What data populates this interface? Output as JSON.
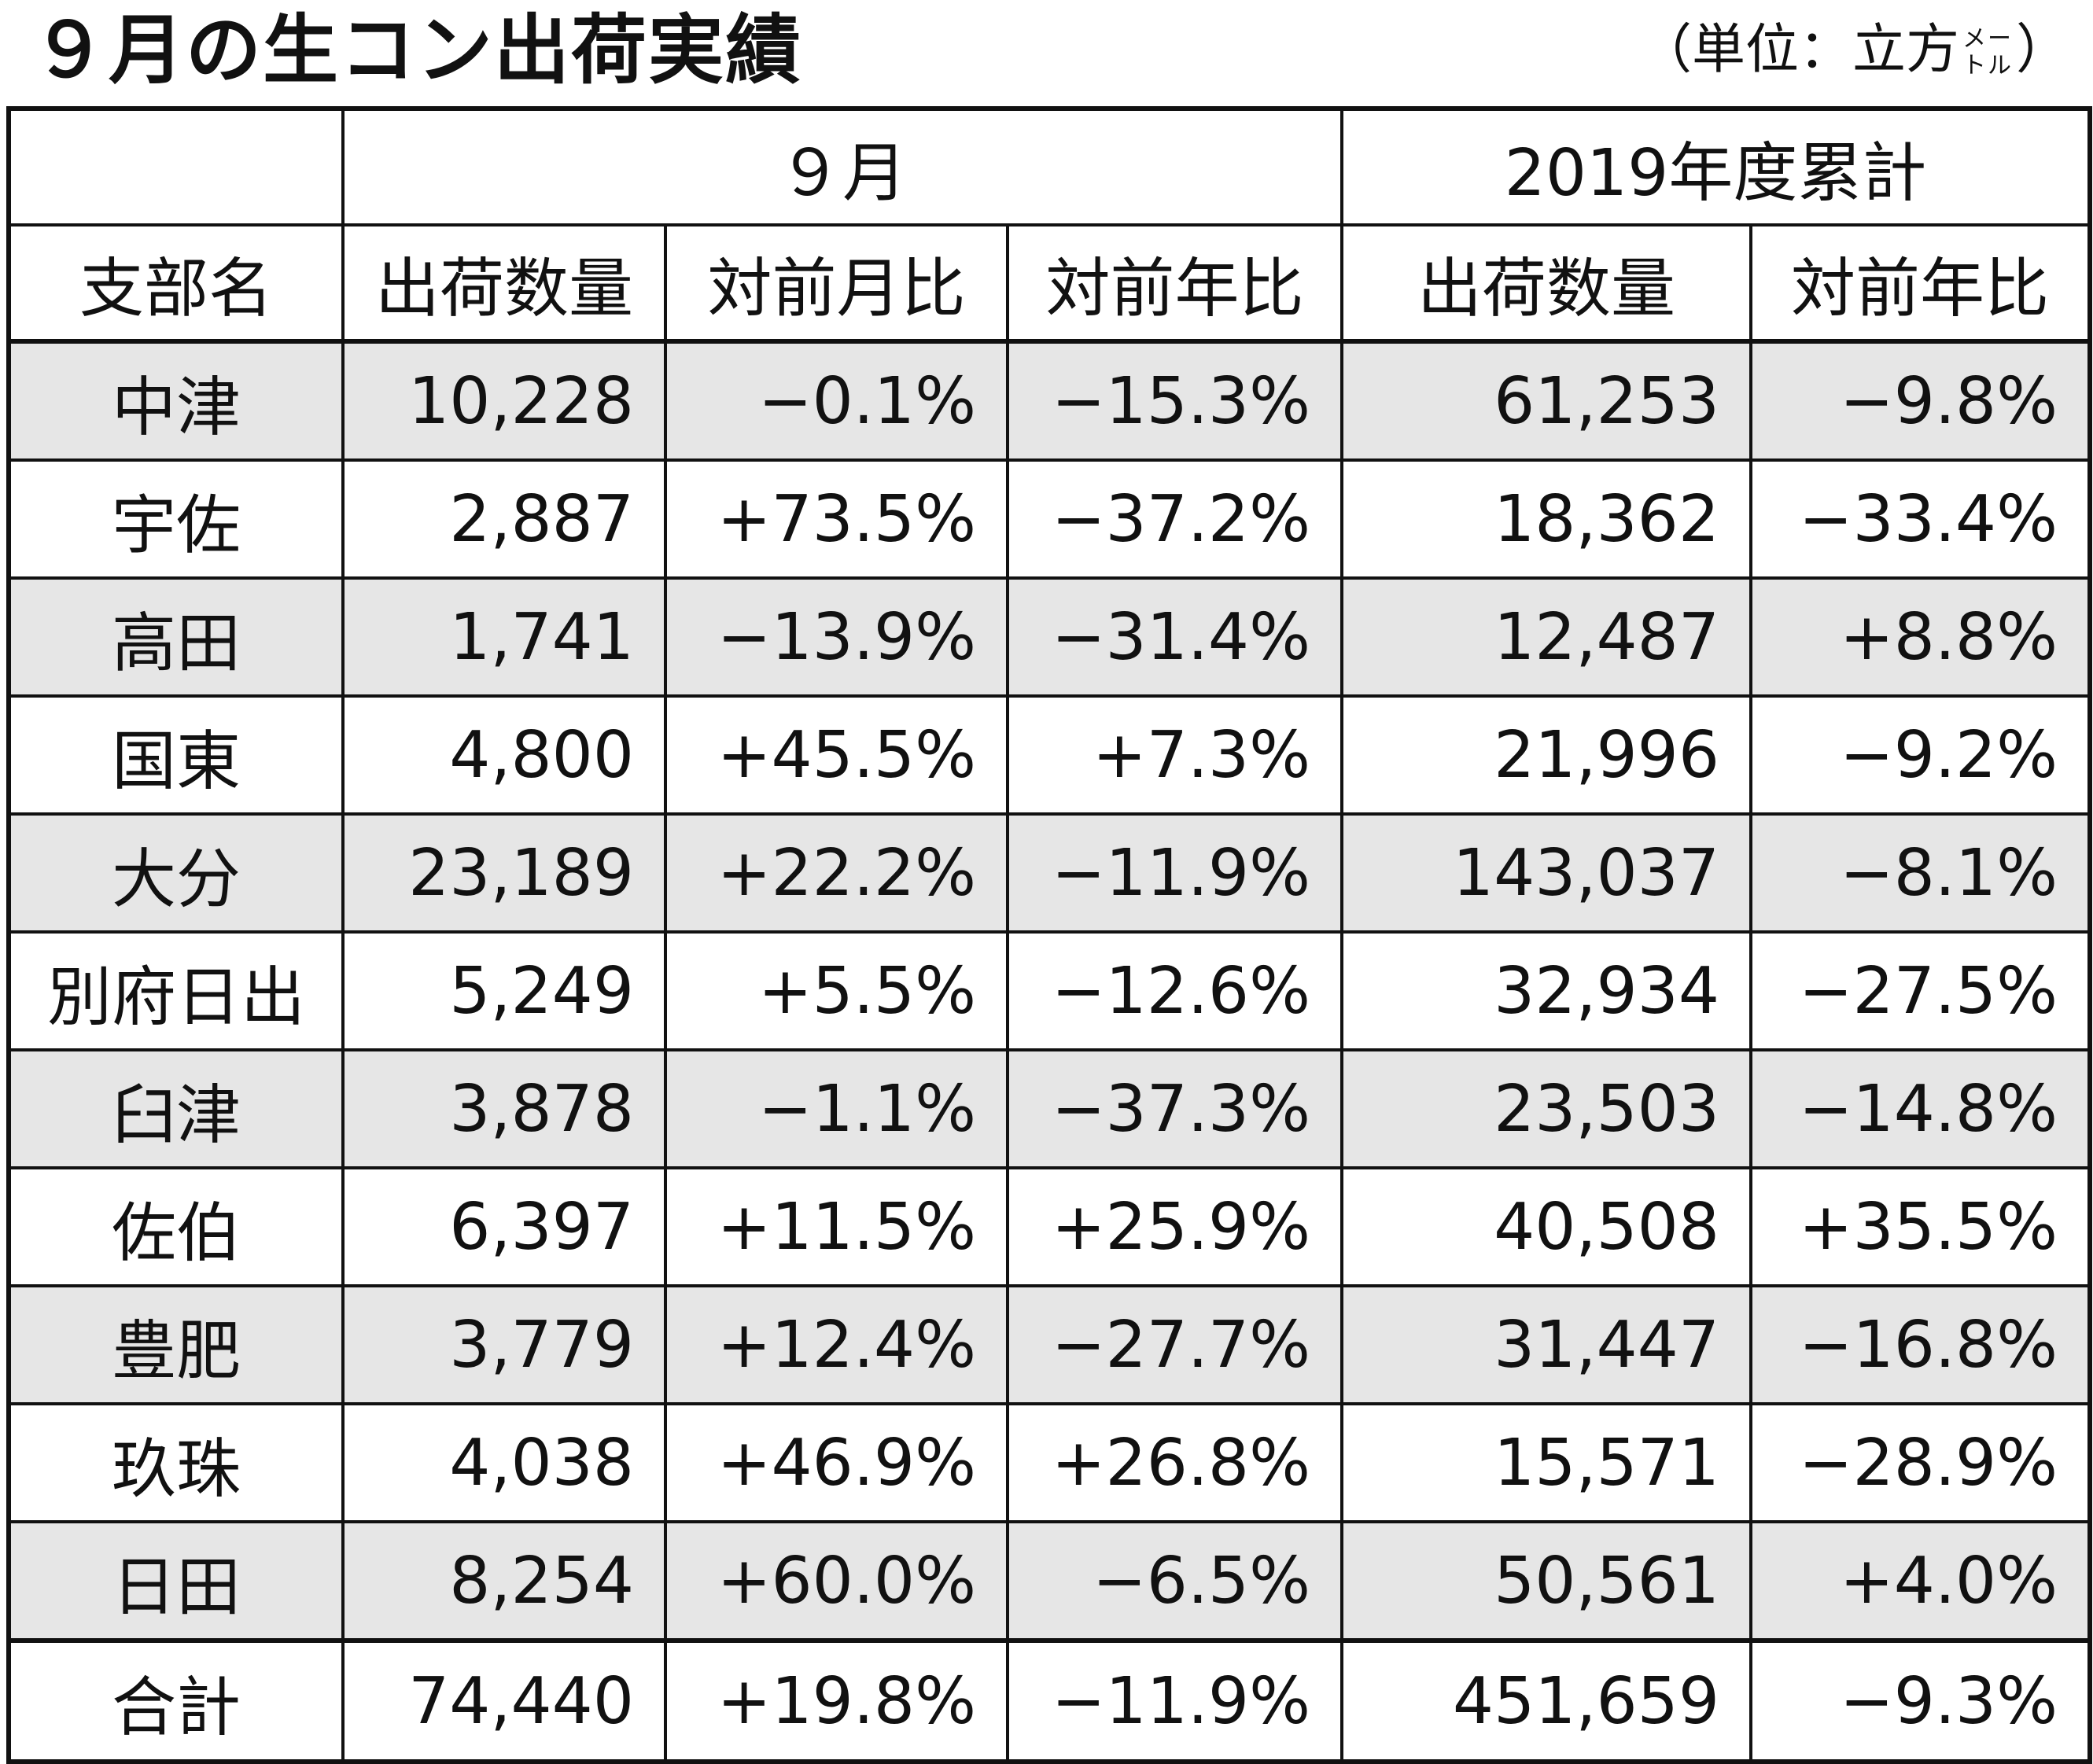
{
  "title": "９月の生コン出荷実績",
  "unit": {
    "prefix": "（単位：立方",
    "small_top": "メー",
    "small_bottom": "トル",
    "suffix": "）"
  },
  "header": {
    "group_month": "９月",
    "group_cumulative": "2019年度累計",
    "col_branch": "支部名",
    "col_month_qty": "出荷数量",
    "col_month_mom": "対前月比",
    "col_month_yoy": "対前年比",
    "col_cum_qty": "出荷数量",
    "col_cum_yoy": "対前年比"
  },
  "rows": [
    {
      "branch": "中津",
      "month_qty": "10,228",
      "month_mom": "−0.1%",
      "month_yoy": "−15.3%",
      "cum_qty": "61,253",
      "cum_yoy": "−9.8%"
    },
    {
      "branch": "宇佐",
      "month_qty": "2,887",
      "month_mom": "+73.5%",
      "month_yoy": "−37.2%",
      "cum_qty": "18,362",
      "cum_yoy": "−33.4%"
    },
    {
      "branch": "高田",
      "month_qty": "1,741",
      "month_mom": "−13.9%",
      "month_yoy": "−31.4%",
      "cum_qty": "12,487",
      "cum_yoy": "+8.8%"
    },
    {
      "branch": "国東",
      "month_qty": "4,800",
      "month_mom": "+45.5%",
      "month_yoy": "+7.3%",
      "cum_qty": "21,996",
      "cum_yoy": "−9.2%"
    },
    {
      "branch": "大分",
      "month_qty": "23,189",
      "month_mom": "+22.2%",
      "month_yoy": "−11.9%",
      "cum_qty": "143,037",
      "cum_yoy": "−8.1%"
    },
    {
      "branch": "別府日出",
      "month_qty": "5,249",
      "month_mom": "+5.5%",
      "month_yoy": "−12.6%",
      "cum_qty": "32,934",
      "cum_yoy": "−27.5%"
    },
    {
      "branch": "臼津",
      "month_qty": "3,878",
      "month_mom": "−1.1%",
      "month_yoy": "−37.3%",
      "cum_qty": "23,503",
      "cum_yoy": "−14.8%"
    },
    {
      "branch": "佐伯",
      "month_qty": "6,397",
      "month_mom": "+11.5%",
      "month_yoy": "+25.9%",
      "cum_qty": "40,508",
      "cum_yoy": "+35.5%"
    },
    {
      "branch": "豊肥",
      "month_qty": "3,779",
      "month_mom": "+12.4%",
      "month_yoy": "−27.7%",
      "cum_qty": "31,447",
      "cum_yoy": "−16.8%"
    },
    {
      "branch": "玖珠",
      "month_qty": "4,038",
      "month_mom": "+46.9%",
      "month_yoy": "+26.8%",
      "cum_qty": "15,571",
      "cum_yoy": "−28.9%"
    },
    {
      "branch": "日田",
      "month_qty": "8,254",
      "month_mom": "+60.0%",
      "month_yoy": "−6.5%",
      "cum_qty": "50,561",
      "cum_yoy": "+4.0%"
    }
  ],
  "total": {
    "branch": "合計",
    "month_qty": "74,440",
    "month_mom": "+19.8%",
    "month_yoy": "−11.9%",
    "cum_qty": "451,659",
    "cum_yoy": "−9.3%"
  },
  "colors": {
    "shade": "#e6e6e6",
    "border": "#111111"
  }
}
